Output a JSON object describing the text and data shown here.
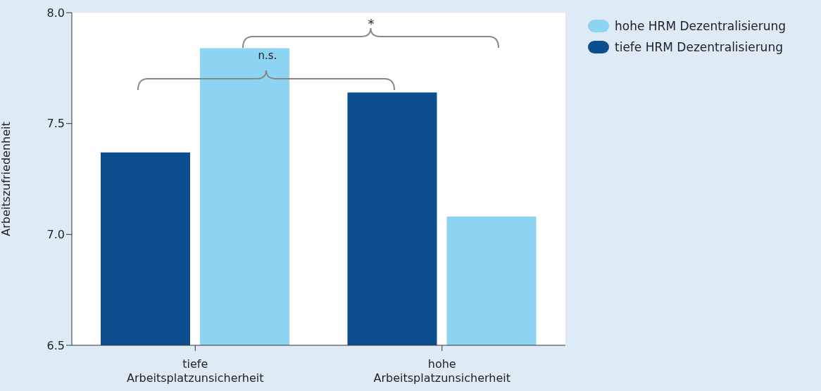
{
  "chart_data": {
    "type": "bar",
    "ylabel": "Arbeitszufriedenheit",
    "categories": [
      "tiefe Arbeitsplatzunsicherheit",
      "hohe Arbeitsplatzunsicherheit"
    ],
    "series": [
      {
        "name": "tiefe HRM Dezentralisierung",
        "color": "#0d4f8e",
        "values": [
          7.37,
          7.64
        ]
      },
      {
        "name": "hohe HRM Dezentralisierung",
        "color": "#8dd3f2",
        "values": [
          7.84,
          7.08
        ]
      }
    ],
    "ylim": [
      6.5,
      8.0
    ],
    "yticks": [
      6.5,
      {
        "value": 7,
        "label": "7.0"
      },
      7.5,
      {
        "value": 8,
        "label": "8.0"
      }
    ],
    "legend": "top right",
    "grid": false,
    "annotations": [
      "n.s.",
      "*"
    ]
  }
}
